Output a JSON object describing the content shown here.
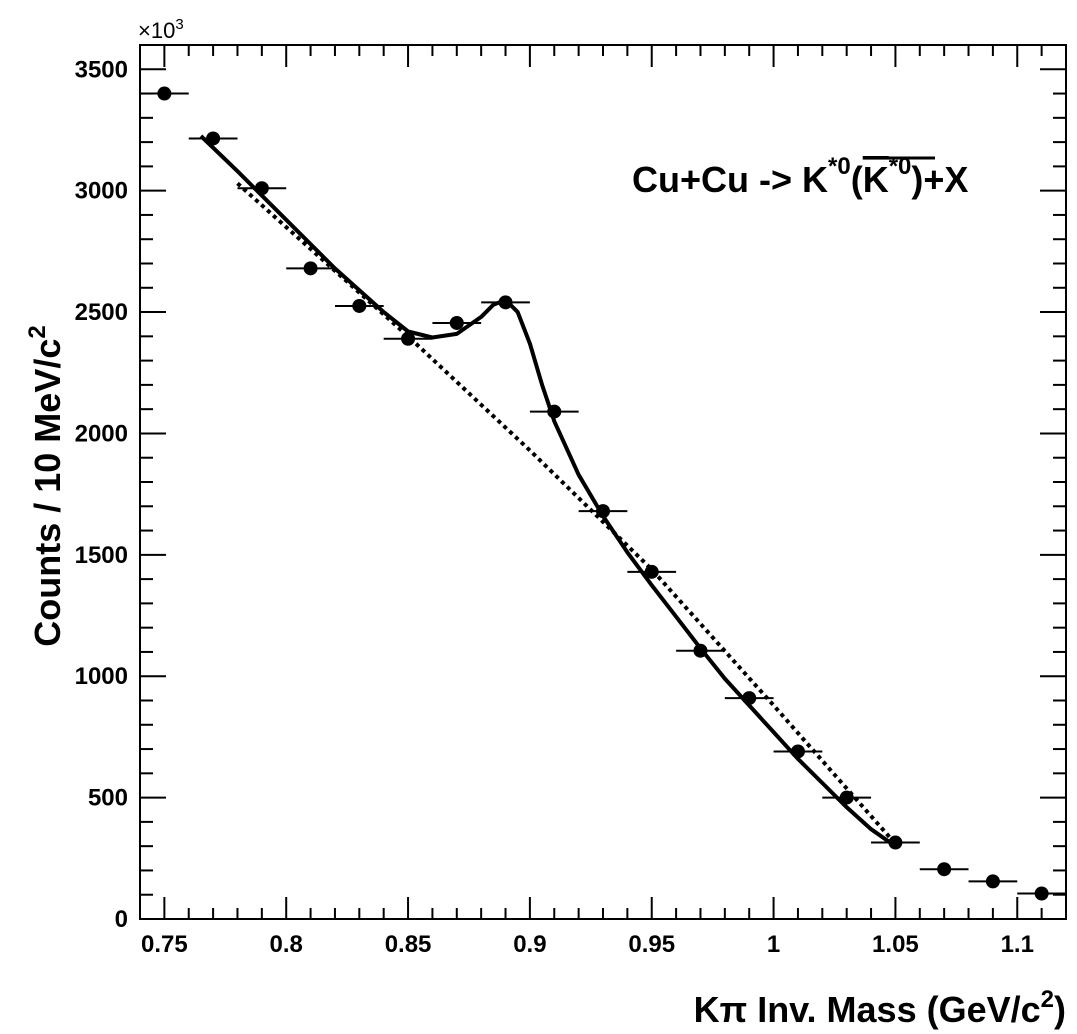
{
  "chart_data": {
    "type": "scatter",
    "title": "",
    "annotation": {
      "base": "Cu+Cu -> K",
      "sup1": "*0",
      "open": "(",
      "kbar": "K",
      "sup2": "*0",
      "close": ")+X"
    },
    "xlabel": {
      "main": "Kπ Inv. Mass (GeV/c",
      "sup": "2",
      "end": ")"
    },
    "ylabel": {
      "main": "Counts / 10 MeV/c",
      "sup": "2"
    },
    "y_multiplier": {
      "base": "×10",
      "exp": "3"
    },
    "xlim": [
      0.74,
      1.12
    ],
    "ylim": [
      0,
      3600
    ],
    "x_ticks": [
      0.75,
      0.8,
      0.85,
      0.9,
      0.95,
      1.0,
      1.05,
      1.1
    ],
    "x_tick_labels": [
      "0.75",
      "0.8",
      "0.85",
      "0.9",
      "0.95",
      "1",
      "1.05",
      "1.1"
    ],
    "y_ticks": [
      0,
      500,
      1000,
      1500,
      2000,
      2500,
      3000,
      3500
    ],
    "y_tick_labels": [
      "0",
      "500",
      "1000",
      "1500",
      "2000",
      "2500",
      "3000",
      "3500"
    ],
    "bin_width": 0.02,
    "points": {
      "x": [
        0.75,
        0.77,
        0.79,
        0.81,
        0.83,
        0.85,
        0.87,
        0.89,
        0.91,
        0.93,
        0.95,
        0.97,
        0.99,
        1.01,
        1.03,
        1.05,
        1.07,
        1.09,
        1.11
      ],
      "y": [
        3400,
        3215,
        3010,
        2680,
        2525,
        2390,
        2455,
        2540,
        2090,
        1680,
        1430,
        1105,
        910,
        690,
        500,
        315,
        205,
        155,
        105
      ]
    },
    "fit_curve": {
      "style": "solid",
      "x": [
        0.765,
        0.78,
        0.8,
        0.82,
        0.84,
        0.85,
        0.86,
        0.87,
        0.88,
        0.885,
        0.89,
        0.895,
        0.9,
        0.905,
        0.91,
        0.92,
        0.93,
        0.94,
        0.95,
        0.96,
        0.97,
        0.98,
        0.99,
        1.0,
        1.01,
        1.02,
        1.03,
        1.04,
        1.05
      ],
      "y": [
        3225,
        3080,
        2880,
        2680,
        2500,
        2420,
        2395,
        2410,
        2480,
        2530,
        2550,
        2500,
        2370,
        2200,
        2050,
        1830,
        1660,
        1510,
        1375,
        1245,
        1115,
        990,
        880,
        770,
        660,
        560,
        460,
        370,
        300
      ]
    },
    "background_curve": {
      "style": "dotted",
      "x": [
        0.78,
        0.8,
        0.85,
        0.9,
        0.95,
        1.0,
        1.05
      ],
      "y": [
        3030,
        2850,
        2400,
        1930,
        1440,
        880,
        310
      ]
    },
    "grid": false,
    "legend": "none"
  }
}
